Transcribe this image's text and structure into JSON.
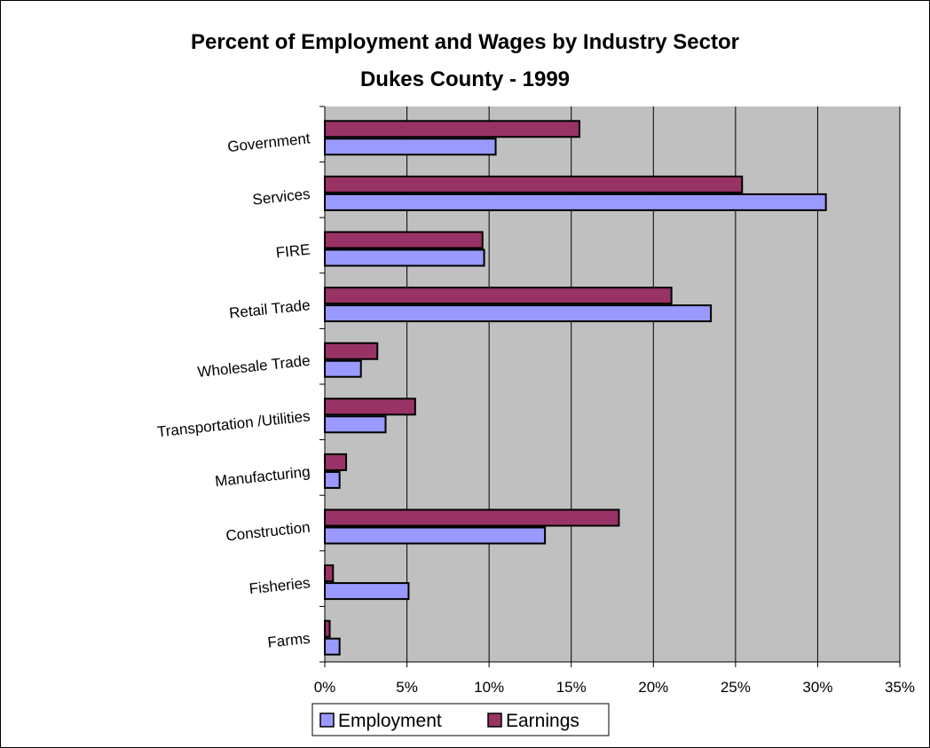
{
  "chart_data": {
    "type": "bar",
    "orientation": "horizontal",
    "title": "Percent of Employment and Wages by Industry Sector",
    "subtitle": "Dukes County - 1999",
    "categories": [
      "Government",
      "Services",
      "FIRE",
      "Retail Trade",
      "Wholesale  Trade",
      "Transportation /Utilities",
      "Manufacturing",
      "Construction",
      "Fisheries",
      "Farms"
    ],
    "series": [
      {
        "name": "Employment",
        "color": "#9999ff",
        "values": [
          10.4,
          30.5,
          9.7,
          23.5,
          2.2,
          3.7,
          0.9,
          13.4,
          5.1,
          0.9
        ]
      },
      {
        "name": "Earnings",
        "color": "#993366",
        "values": [
          15.5,
          25.4,
          9.6,
          21.1,
          3.2,
          5.5,
          1.3,
          17.9,
          0.5,
          0.3
        ]
      }
    ],
    "xlim": [
      0,
      35
    ],
    "xticks": [
      "0%",
      "5%",
      "10%",
      "15%",
      "20%",
      "25%",
      "30%",
      "35%"
    ],
    "tick_values": [
      0,
      5,
      10,
      15,
      20,
      25,
      30,
      35
    ],
    "grid": "vertical",
    "plot_background": "#c0c0c0",
    "legend": "bottom"
  }
}
